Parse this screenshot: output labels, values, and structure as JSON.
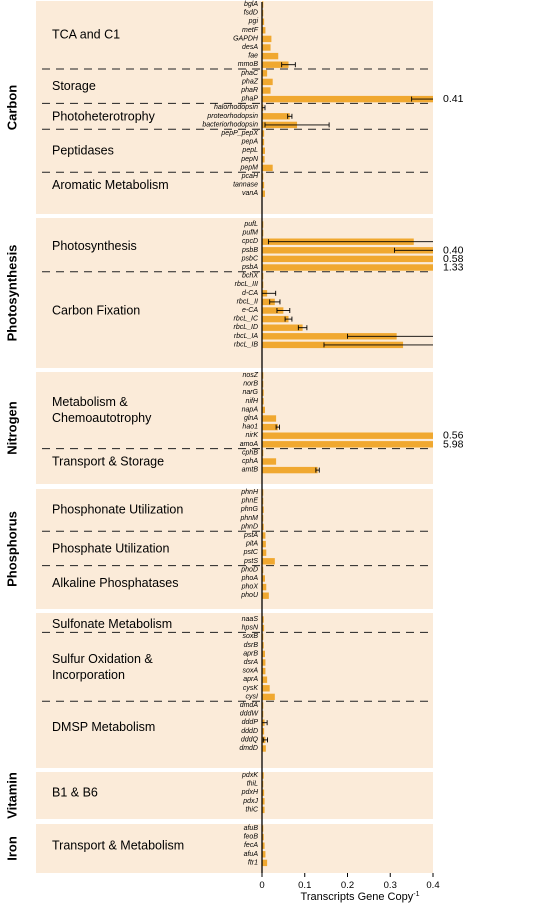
{
  "chart_data": {
    "type": "bar",
    "orientation": "horizontal",
    "xlabel": "Transcripts Gene Copy",
    "xlabel_superscript": "-1",
    "xlim": [
      0,
      0.4
    ],
    "xticks": [
      "0",
      "0.1",
      "0.2",
      "0.3",
      "0.4"
    ],
    "bar_color": "#f0a830",
    "panel_color": "#fbebd9",
    "groups": [
      {
        "name": "Carbon",
        "sections": [
          {
            "label": "TCA and C1",
            "genes": [
              {
                "gene": "bglA",
                "value": 0.003,
                "err": 0
              },
              {
                "gene": "fsdD",
                "value": 0.003,
                "err": 0
              },
              {
                "gene": "pgi",
                "value": 0.005,
                "err": 0
              },
              {
                "gene": "metF",
                "value": 0.008,
                "err": 0
              },
              {
                "gene": "GAPDH",
                "value": 0.022,
                "err": 0
              },
              {
                "gene": "desA",
                "value": 0.02,
                "err": 0
              },
              {
                "gene": "fae",
                "value": 0.038,
                "err": 0
              },
              {
                "gene": "mmoB",
                "value": 0.062,
                "err": 0.016
              }
            ]
          },
          {
            "label": "Storage",
            "genes": [
              {
                "gene": "phaC",
                "value": 0.012,
                "err": 0
              },
              {
                "gene": "phaZ",
                "value": 0.025,
                "err": 0
              },
              {
                "gene": "phaR",
                "value": 0.02,
                "err": 0
              },
              {
                "gene": "phaP",
                "value": 0.41,
                "err": 0.06,
                "overflow_label": "0.41"
              }
            ]
          },
          {
            "label": "Photoheterotrophy",
            "genes": [
              {
                "gene": "halorhodopsin",
                "value": 0.003,
                "err": 0.004
              },
              {
                "gene": "proteorhodopsin",
                "value": 0.065,
                "err": 0.005
              },
              {
                "gene": "bacteriorhodopsin",
                "value": 0.082,
                "err": 0.075
              }
            ]
          },
          {
            "label": "Peptidases",
            "genes": [
              {
                "gene": "pepP_pepX",
                "value": 0.005,
                "err": 0
              },
              {
                "gene": "pepA",
                "value": 0.005,
                "err": 0
              },
              {
                "gene": "pepL",
                "value": 0.007,
                "err": 0
              },
              {
                "gene": "pepN",
                "value": 0.006,
                "err": 0
              },
              {
                "gene": "pepM",
                "value": 0.025,
                "err": 0
              }
            ]
          },
          {
            "label": "Aromatic Metabolism",
            "genes": [
              {
                "gene": "pcaH",
                "value": 0.003,
                "err": 0
              },
              {
                "gene": "tannase",
                "value": 0.005,
                "err": 0
              },
              {
                "gene": "vanA",
                "value": 0.007,
                "err": 0
              }
            ]
          }
        ]
      },
      {
        "name": "Photosynthesis",
        "sections": [
          {
            "label": "Photosynthesis",
            "genes": [
              {
                "gene": "pufL",
                "value": 0.003,
                "err": 0
              },
              {
                "gene": "pufM",
                "value": 0.003,
                "err": 0
              },
              {
                "gene": "cpcD",
                "value": 0.355,
                "err": 0.34
              },
              {
                "gene": "psbB",
                "value": 0.4,
                "err": 0.09,
                "overflow_label": "0.40"
              },
              {
                "gene": "psbC",
                "value": 0.58,
                "err": 0,
                "overflow_label": "0.58"
              },
              {
                "gene": "psbA",
                "value": 1.33,
                "err": 0,
                "overflow_label": "1.33"
              }
            ]
          },
          {
            "label": "Carbon Fixation",
            "genes": [
              {
                "gene": "bchX",
                "value": 0.003,
                "err": 0
              },
              {
                "gene": "rbcL_III",
                "value": 0.003,
                "err": 0
              },
              {
                "gene": "d-CA",
                "value": 0.012,
                "err": 0.02
              },
              {
                "gene": "rbcL_II",
                "value": 0.03,
                "err": 0.012
              },
              {
                "gene": "e-CA",
                "value": 0.05,
                "err": 0.015
              },
              {
                "gene": "rbcL_IC",
                "value": 0.062,
                "err": 0.008
              },
              {
                "gene": "rbcL_ID",
                "value": 0.095,
                "err": 0.01
              },
              {
                "gene": "rbcL_IA",
                "value": 0.315,
                "err": 0.115
              },
              {
                "gene": "rbcL_IB",
                "value": 0.33,
                "err": 0.185
              }
            ]
          }
        ]
      },
      {
        "name": "Nitrogen",
        "sections": [
          {
            "label": "Metabolism & Chemoautotrophy",
            "genes": [
              {
                "gene": "nosZ",
                "value": 0.003,
                "err": 0
              },
              {
                "gene": "norB",
                "value": 0.003,
                "err": 0
              },
              {
                "gene": "narG",
                "value": 0.004,
                "err": 0
              },
              {
                "gene": "nifH",
                "value": 0.004,
                "err": 0
              },
              {
                "gene": "napA",
                "value": 0.007,
                "err": 0
              },
              {
                "gene": "glnA",
                "value": 0.033,
                "err": 0
              },
              {
                "gene": "hao1",
                "value": 0.037,
                "err": 0.004
              },
              {
                "gene": "nirK",
                "value": 0.56,
                "err": 0,
                "overflow_label": "0.56"
              },
              {
                "gene": "amoA",
                "value": 5.98,
                "err": 0,
                "overflow_label": "5.98"
              }
            ]
          },
          {
            "label": "Transport & Storage",
            "genes": [
              {
                "gene": "cphB",
                "value": 0.003,
                "err": 0
              },
              {
                "gene": "cphA",
                "value": 0.033,
                "err": 0
              },
              {
                "gene": "amtB",
                "value": 0.13,
                "err": 0.004
              }
            ]
          }
        ]
      },
      {
        "name": "Phosphorus",
        "sections": [
          {
            "label": "Phosphonate Utilization",
            "genes": [
              {
                "gene": "phnH",
                "value": 0.003,
                "err": 0
              },
              {
                "gene": "phnE",
                "value": 0.003,
                "err": 0
              },
              {
                "gene": "phnG",
                "value": 0.004,
                "err": 0
              },
              {
                "gene": "phnM",
                "value": 0.003,
                "err": 0
              },
              {
                "gene": "phnD",
                "value": 0.004,
                "err": 0
              }
            ]
          },
          {
            "label": "Phosphate Utilization",
            "genes": [
              {
                "gene": "pstA",
                "value": 0.008,
                "err": 0
              },
              {
                "gene": "pitA",
                "value": 0.009,
                "err": 0
              },
              {
                "gene": "pstC",
                "value": 0.01,
                "err": 0
              },
              {
                "gene": "pstS",
                "value": 0.03,
                "err": 0
              }
            ]
          },
          {
            "label": "Alkaline Phosphatases",
            "genes": [
              {
                "gene": "phoD",
                "value": 0.003,
                "err": 0
              },
              {
                "gene": "phoA",
                "value": 0.007,
                "err": 0
              },
              {
                "gene": "phoX",
                "value": 0.01,
                "err": 0
              },
              {
                "gene": "phoU",
                "value": 0.016,
                "err": 0
              }
            ]
          }
        ]
      },
      {
        "name": "",
        "sections": [
          {
            "label": "Sulfonate Metabolism",
            "genes": [
              {
                "gene": "naaS",
                "value": 0.004,
                "err": 0
              },
              {
                "gene": "hpsN",
                "value": 0.005,
                "err": 0
              }
            ]
          },
          {
            "label": "Sulfur Oxidation & Incorporation",
            "genes": [
              {
                "gene": "soxB",
                "value": 0.003,
                "err": 0
              },
              {
                "gene": "dsrB",
                "value": 0.004,
                "err": 0
              },
              {
                "gene": "aprB",
                "value": 0.007,
                "err": 0
              },
              {
                "gene": "dsrA",
                "value": 0.008,
                "err": 0
              },
              {
                "gene": "soxA",
                "value": 0.008,
                "err": 0
              },
              {
                "gene": "aprA",
                "value": 0.012,
                "err": 0
              },
              {
                "gene": "cysK",
                "value": 0.018,
                "err": 0
              },
              {
                "gene": "cysI",
                "value": 0.03,
                "err": 0
              }
            ]
          },
          {
            "label": "DMSP Metabolism",
            "genes": [
              {
                "gene": "dmdA",
                "value": 0.003,
                "err": 0
              },
              {
                "gene": "dddW",
                "value": 0.003,
                "err": 0
              },
              {
                "gene": "dddP",
                "value": 0.006,
                "err": 0.006
              },
              {
                "gene": "dddD",
                "value": 0.005,
                "err": 0
              },
              {
                "gene": "dddQ",
                "value": 0.008,
                "err": 0.005
              },
              {
                "gene": "dmdD",
                "value": 0.009,
                "err": 0
              }
            ]
          }
        ]
      },
      {
        "name": "Vitamin",
        "sections": [
          {
            "label": "B1 & B6",
            "genes": [
              {
                "gene": "pdxK",
                "value": 0.004,
                "err": 0
              },
              {
                "gene": "thiL",
                "value": 0.003,
                "err": 0
              },
              {
                "gene": "pdxH",
                "value": 0.005,
                "err": 0
              },
              {
                "gene": "pdxJ",
                "value": 0.006,
                "err": 0
              },
              {
                "gene": "thiC",
                "value": 0.006,
                "err": 0
              }
            ]
          }
        ]
      },
      {
        "name": "Iron",
        "sections": [
          {
            "label": "Transport & Metabolism",
            "genes": [
              {
                "gene": "afuB",
                "value": 0.003,
                "err": 0
              },
              {
                "gene": "feoB",
                "value": 0.004,
                "err": 0
              },
              {
                "gene": "fecA",
                "value": 0.006,
                "err": 0
              },
              {
                "gene": "afuA",
                "value": 0.008,
                "err": 0
              },
              {
                "gene": "ftr1",
                "value": 0.012,
                "err": 0
              }
            ]
          }
        ]
      }
    ]
  }
}
